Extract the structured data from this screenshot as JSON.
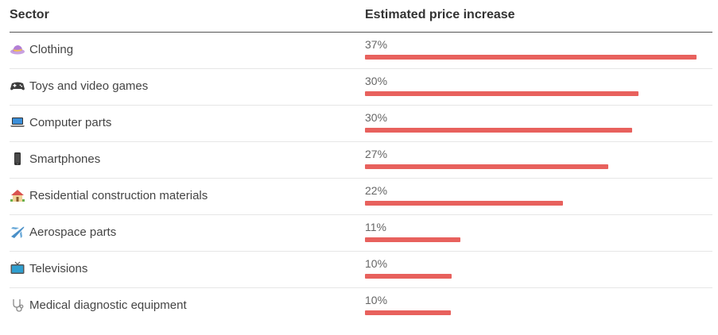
{
  "header": {
    "sector_label": "Sector",
    "value_label": "Estimated price increase"
  },
  "colors": {
    "bar": "#e8615d"
  },
  "chart_data": {
    "type": "bar",
    "orientation": "horizontal",
    "xlabel": "Estimated price increase",
    "ylabel": "Sector",
    "unit": "%",
    "xlim": [
      0,
      39
    ],
    "grid": false,
    "legend": "none",
    "categories": [
      "Clothing",
      "Toys and video games",
      "Computer parts",
      "Smartphones",
      "Residential construction materials",
      "Aerospace parts",
      "Televisions",
      "Medical diagnostic equipment"
    ],
    "icons": [
      "hat-icon",
      "gamepad-icon",
      "laptop-icon",
      "smartphone-icon",
      "house-icon",
      "airplane-icon",
      "television-icon",
      "stethoscope-icon"
    ],
    "labels": [
      "37%",
      "30%",
      "30%",
      "27%",
      "22%",
      "11%",
      "10%",
      "10%"
    ],
    "values": [
      37,
      30.5,
      29.8,
      27.1,
      22.1,
      10.6,
      9.7,
      9.6
    ]
  }
}
